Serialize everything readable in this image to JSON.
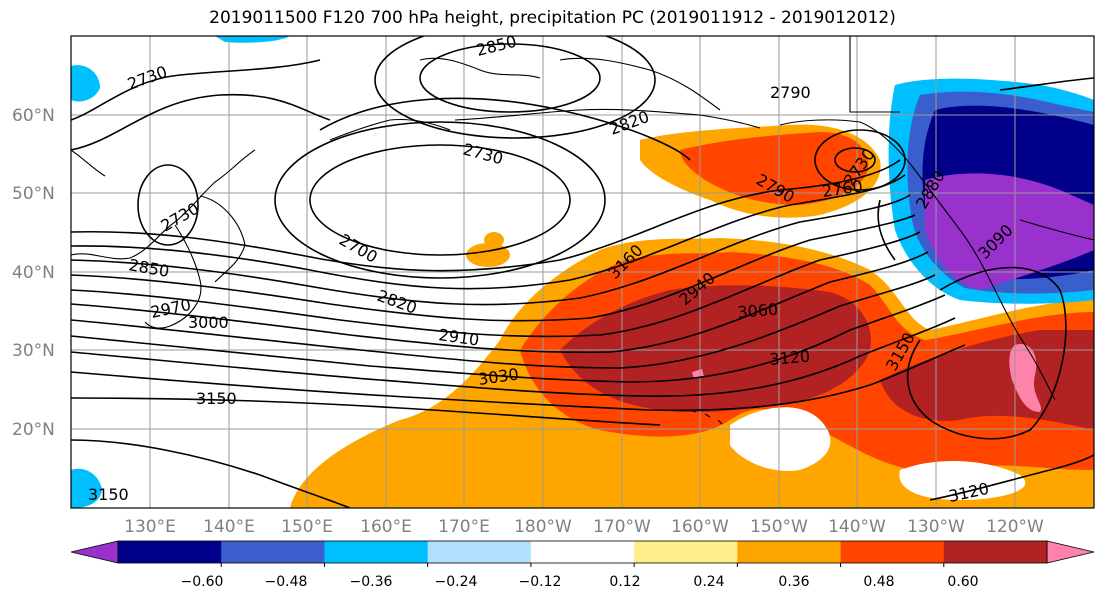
{
  "title": "2019011500 F120 700 hPa height, precipitation PC (2019011912 - 2019012012)",
  "map": {
    "lon_ticks": [
      "130°E",
      "140°E",
      "150°E",
      "160°E",
      "170°E",
      "180°W",
      "170°W",
      "160°W",
      "150°W",
      "140°W",
      "130°W",
      "120°W"
    ],
    "lat_ticks": [
      "20°N",
      "30°N",
      "40°N",
      "50°N",
      "60°N"
    ],
    "grid": true
  },
  "colorbar": {
    "tick_labels": [
      "−0.60",
      "−0.48",
      "−0.36",
      "−0.24",
      "−0.12",
      "0.12",
      "0.24",
      "0.36",
      "0.48",
      "0.60"
    ],
    "colors": [
      "#9932cc",
      "#00008b",
      "#3a5fcd",
      "#00bfff",
      "#b0e2ff",
      "#ffffff",
      "#ffec8b",
      "#ffa500",
      "#ff4500",
      "#b22222",
      "#ff82ab"
    ]
  },
  "contour_labels": [
    {
      "text": "2850"
    },
    {
      "text": "2730"
    },
    {
      "text": "2790"
    },
    {
      "text": "2820"
    },
    {
      "text": "2730"
    },
    {
      "text": "2790"
    },
    {
      "text": "2760"
    },
    {
      "text": "2730"
    },
    {
      "text": "2730"
    },
    {
      "text": "2700"
    },
    {
      "text": "2850"
    },
    {
      "text": "2820"
    },
    {
      "text": "2970"
    },
    {
      "text": "3000"
    },
    {
      "text": "2910"
    },
    {
      "text": "2940"
    },
    {
      "text": "3060"
    },
    {
      "text": "3030"
    },
    {
      "text": "3120"
    },
    {
      "text": "3150"
    },
    {
      "text": "3150"
    },
    {
      "text": "2880"
    },
    {
      "text": "3090"
    },
    {
      "text": "3160"
    },
    {
      "text": "3120"
    },
    {
      "text": "3150"
    }
  ]
}
